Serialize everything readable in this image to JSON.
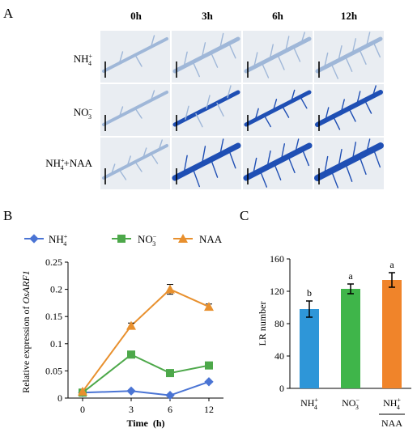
{
  "figure": {
    "panel_letters": [
      "A",
      "B",
      "C"
    ],
    "panel_a": {
      "time_labels": [
        "0h",
        "3h",
        "6h",
        "12h"
      ],
      "row_labels": [
        {
          "base": "NH",
          "sub": "4",
          "sup": "+",
          "rest": ""
        },
        {
          "base": "NO",
          "sub": "3",
          "sup": "−",
          "rest": ""
        },
        {
          "base": "NH",
          "sub": "4",
          "sup": "+",
          "rest": "+NAA"
        }
      ],
      "micrograph_colors": {
        "background": "#e9edf2",
        "stain_light": "#9fb7d8",
        "stain_dark": "#1f4fb4"
      }
    }
  },
  "chart_data": [
    {
      "type": "line",
      "ylabel_prefix": "Relative expression of ",
      "ylabel_gene": "OsARF1",
      "xlabel": "Time  (h)",
      "x": [
        0,
        3,
        6,
        12
      ],
      "x_ticks": [
        "0",
        "3",
        "6",
        "12"
      ],
      "ylim": [
        0,
        0.25
      ],
      "y_ticks": [
        "0",
        "0.05",
        "0.1",
        "0.15",
        "0.2",
        "0.25"
      ],
      "legend_position": "top",
      "series": [
        {
          "name_base": "NH",
          "name_sub": "4",
          "name_sup": "+",
          "color": "#4a74d4",
          "marker": "diamond",
          "values": [
            0.01,
            0.013,
            0.005,
            0.03
          ]
        },
        {
          "name_base": "NO",
          "name_sub": "3",
          "name_sup": "−",
          "color": "#4da84a",
          "marker": "square",
          "values": [
            0.01,
            0.08,
            0.046,
            0.06
          ]
        },
        {
          "name": "NAA",
          "color": "#e8902e",
          "marker": "triangle",
          "values": [
            0.012,
            0.133,
            0.2,
            0.168
          ],
          "errors": [
            0.0,
            0.005,
            0.009,
            0.005
          ]
        }
      ]
    },
    {
      "type": "bar",
      "ylabel": "LR number",
      "ylim": [
        0,
        160
      ],
      "y_ticks": [
        "0",
        "40",
        "80",
        "120",
        "160"
      ],
      "categories": [
        {
          "base": "NH",
          "sub": "4",
          "sup": "+",
          "under": ""
        },
        {
          "base": "NO",
          "sub": "3",
          "sup": "−",
          "under": ""
        },
        {
          "base": "NH",
          "sub": "4",
          "sup": "+",
          "under": "NAA"
        }
      ],
      "values": [
        98,
        123,
        134
      ],
      "errors": [
        10,
        6,
        9
      ],
      "colors": [
        "#2e96d8",
        "#3fb54a",
        "#f0842a"
      ],
      "significance": [
        "b",
        "a",
        "a"
      ]
    }
  ]
}
